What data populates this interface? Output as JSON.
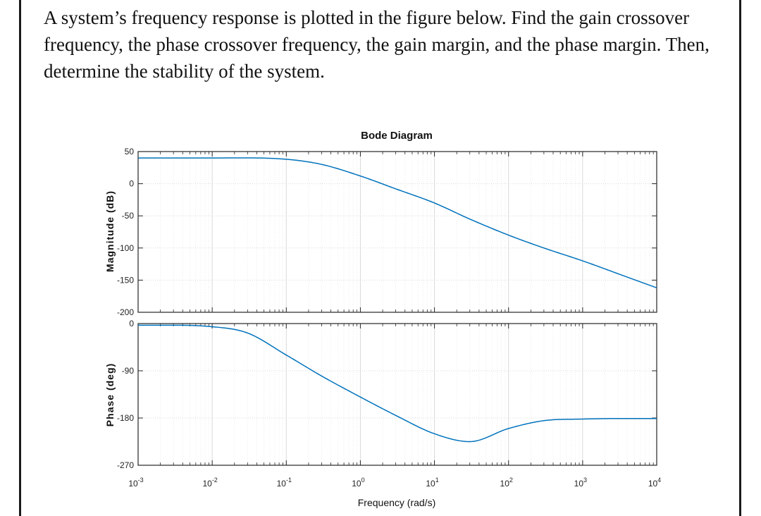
{
  "problem_text": "A system’s frequency response is plotted in the figure below. Find the gain crossover frequency, the phase crossover frequency, the gain margin, and the phase margin. Then, determine the stability of the system.",
  "chart_data": {
    "type": "line",
    "title": "Bode Diagram",
    "xlabel": "Frequency (rad/s)",
    "x_scale": "log",
    "xlim": [
      0.001,
      10000
    ],
    "x_tick_labels": [
      "10-3",
      "10-2",
      "10-1",
      "100",
      "101",
      "102",
      "103",
      "104"
    ],
    "colors": {
      "curve": "#0072bd",
      "grid": "#d9d9d9",
      "axes": "#262626"
    },
    "panels": [
      {
        "name": "magnitude",
        "ylabel": "Magnitude (dB)",
        "ylim": [
          -200,
          50
        ],
        "y_ticks": [
          50,
          0,
          -50,
          -100,
          -150,
          -200
        ],
        "x": [
          0.001,
          0.01,
          0.1,
          0.3,
          1,
          3,
          10,
          30,
          100,
          300,
          1000,
          3000,
          10000
        ],
        "y": [
          40,
          40,
          38,
          30,
          12,
          -8,
          -30,
          -55,
          -80,
          -100,
          -120,
          -140,
          -162
        ]
      },
      {
        "name": "phase",
        "ylabel": "Phase (deg)",
        "ylim": [
          -270,
          0
        ],
        "y_ticks": [
          0,
          -90,
          -180,
          -270
        ],
        "x": [
          0.001,
          0.01,
          0.03,
          0.1,
          0.3,
          1,
          3,
          10,
          30,
          100,
          300,
          1000,
          3000,
          10000
        ],
        "y": [
          -3,
          -6,
          -18,
          -60,
          -100,
          -140,
          -175,
          -210,
          -225,
          -200,
          -185,
          -182,
          -181,
          -181
        ]
      }
    ]
  }
}
